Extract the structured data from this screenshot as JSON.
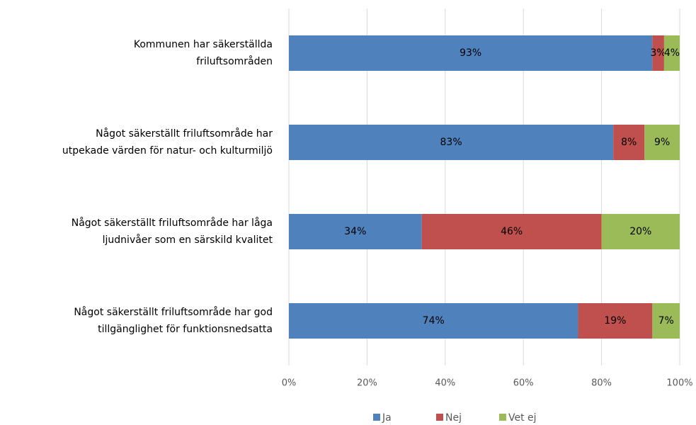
{
  "chart_data": {
    "type": "stacked_barh",
    "categories": [
      [
        "Kommunen har säkerställda",
        "friluftsområden"
      ],
      [
        "Något säkerställt friluftsområde har",
        "utpekade värden för natur- och kulturmiljö"
      ],
      [
        "Något säkerställt friluftsområde har låga",
        "ljudnivåer som en särskild kvalitet"
      ],
      [
        "Något säkerställt friluftsområde har god",
        "tillgänglighet för funktionsnedsatta"
      ]
    ],
    "series": [
      {
        "name": "Ja",
        "color": "#4f81bd",
        "label_color": "#ffffff",
        "values": [
          93,
          83,
          34,
          74
        ],
        "value_labels": [
          "93%",
          "83%",
          "34%",
          "74%"
        ]
      },
      {
        "name": "Nej",
        "color": "#c0504d",
        "label_color": "#000000",
        "values": [
          3,
          8,
          46,
          19
        ],
        "value_labels": [
          "3%",
          "8%",
          "46%",
          "19%"
        ]
      },
      {
        "name": "Vet ej",
        "color": "#9bbb59",
        "label_color": "#000000",
        "values": [
          4,
          9,
          20,
          7
        ],
        "value_labels": [
          "4%",
          "9%",
          "20%",
          "7%"
        ]
      }
    ],
    "xlim": [
      0,
      100
    ],
    "xticks": [
      {
        "value": 0,
        "label": "0%"
      },
      {
        "value": 20,
        "label": "20%"
      },
      {
        "value": 40,
        "label": "40%"
      },
      {
        "value": 60,
        "label": "60%"
      },
      {
        "value": 80,
        "label": "80%"
      },
      {
        "value": 100,
        "label": "100%"
      }
    ],
    "grid": true,
    "legend": "bottom"
  }
}
